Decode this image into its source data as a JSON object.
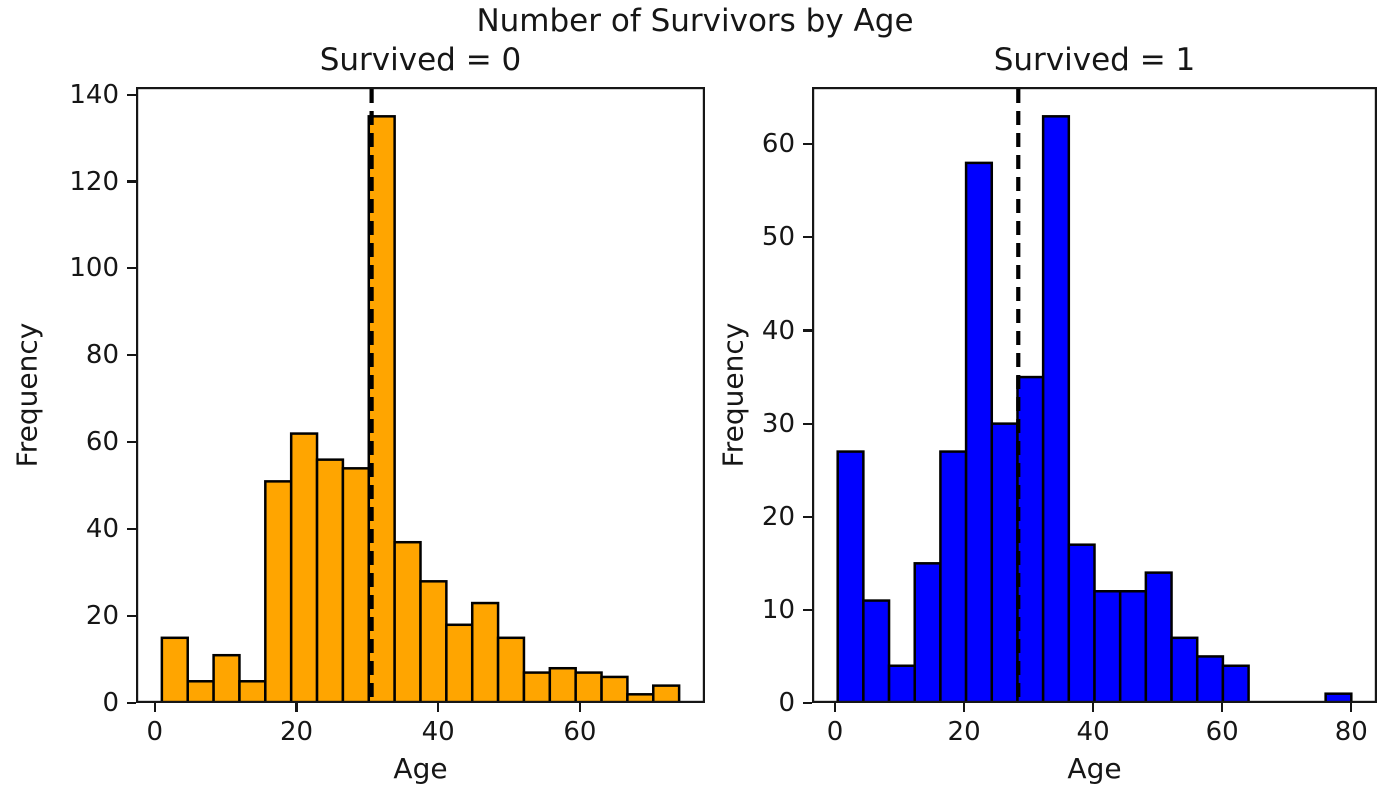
{
  "figure": {
    "suptitle": "Number of Survivors by Age",
    "background": "#ffffff",
    "text_color": "#161616"
  },
  "chart_data": [
    {
      "type": "bar",
      "subtype": "histogram",
      "title": "Survived = 0",
      "xlabel": "Age",
      "ylabel": "Frequency",
      "bar_color": "#FFA500",
      "edge_color": "#000000",
      "bin_start": 1.0,
      "bin_width": 3.65,
      "counts": [
        15,
        5,
        11,
        5,
        51,
        62,
        56,
        54,
        135,
        37,
        28,
        18,
        23,
        15,
        7,
        8,
        7,
        6,
        2,
        4
      ],
      "total": 549,
      "mean_age": 30.6,
      "mean_line_style": "dashed",
      "mean_line_color": "#000000",
      "xticks": [
        0,
        20,
        40,
        60
      ],
      "yticks": [
        0,
        20,
        40,
        60,
        80,
        100,
        120,
        140
      ],
      "xlim": [
        -2.65,
        77.65
      ],
      "ylim": [
        0,
        141.75
      ],
      "grid": false,
      "legend": "none"
    },
    {
      "type": "bar",
      "subtype": "histogram",
      "title": "Survived = 1",
      "xlabel": "Age",
      "ylabel": "Frequency",
      "bar_color": "#0000FF",
      "edge_color": "#000000",
      "bin_start": 0.42,
      "bin_width": 3.979,
      "counts": [
        27,
        11,
        4,
        15,
        27,
        58,
        30,
        35,
        63,
        17,
        12,
        12,
        14,
        7,
        5,
        4,
        0,
        0,
        0,
        1
      ],
      "total": 342,
      "mean_age": 28.4,
      "mean_line_style": "dashed",
      "mean_line_color": "#000000",
      "xticks": [
        0,
        20,
        40,
        60,
        80
      ],
      "yticks": [
        0,
        10,
        20,
        30,
        40,
        50,
        60
      ],
      "xlim": [
        -3.56,
        83.98
      ],
      "ylim": [
        0,
        66.15
      ],
      "grid": false,
      "legend": "none"
    }
  ]
}
